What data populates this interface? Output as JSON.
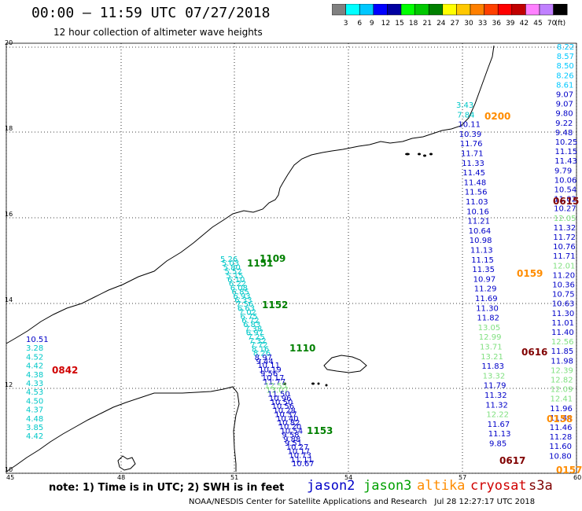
{
  "title": "00:00 – 11:59 UTC 07/27/2018",
  "subtitle": "12 hour collection of altimeter wave heights",
  "colorbar": {
    "ticks": [
      "3",
      "6",
      "9",
      "12",
      "15",
      "18",
      "21",
      "24",
      "27",
      "30",
      "33",
      "36",
      "39",
      "42",
      "45",
      "70"
    ],
    "unit": "(ft)",
    "colors": [
      "#808080",
      "#00ffff",
      "#00c8ff",
      "#0000ff",
      "#0000a0",
      "#00ff00",
      "#00c800",
      "#008000",
      "#ffff00",
      "#ffc800",
      "#ff8000",
      "#ff4000",
      "#ff0000",
      "#c00000",
      "#ff80ff",
      "#c080ff",
      "#000000"
    ]
  },
  "axes": {
    "lat_ticks": [
      "20",
      "18",
      "16",
      "14",
      "12",
      "10"
    ],
    "lon_ticks": [
      "45",
      "48",
      "51",
      "54",
      "57",
      "60"
    ]
  },
  "legend": {
    "note": "note: 1) Time is in UTC; 2) SWH is in feet",
    "sats": [
      {
        "name": "jason2",
        "color": "#0000c8"
      },
      {
        "name": "jason3",
        "color": "#00a000"
      },
      {
        "name": "altika",
        "color": "#ff8c00"
      },
      {
        "name": "cryosat",
        "color": "#d00000"
      },
      {
        "name": "s3a",
        "color": "#800000"
      }
    ]
  },
  "footer": "NOAA/NESDIS Center for Satellite Applications and Research   Jul 28 12:27:17 UTC 2018",
  "times": [
    {
      "label": "0200",
      "color": "#ff8c00"
    },
    {
      "label": "0615",
      "color": "#800000"
    },
    {
      "label": "1151",
      "color": "#008000"
    },
    {
      "label": "1109",
      "color": "#008000"
    },
    {
      "label": "0159",
      "color": "#ff8c00"
    },
    {
      "label": "1152",
      "color": "#008000"
    },
    {
      "label": "1110",
      "color": "#008000"
    },
    {
      "label": "0616",
      "color": "#800000"
    },
    {
      "label": "0842",
      "color": "#d00000"
    },
    {
      "label": "0158",
      "color": "#ff8c00"
    },
    {
      "label": "1153",
      "color": "#008000"
    },
    {
      "label": "0617",
      "color": "#800000"
    },
    {
      "label": "0157",
      "color": "#ff8c00"
    }
  ],
  "obs": {
    "east_track": [
      {
        "v": "8.22",
        "c": "#00c8ff"
      },
      {
        "v": "8.57",
        "c": "#00c8ff"
      },
      {
        "v": "8.50",
        "c": "#00c8ff"
      },
      {
        "v": "8.26",
        "c": "#00c8ff"
      },
      {
        "v": "8.61",
        "c": "#00c8ff"
      },
      {
        "v": "9.07",
        "c": "#0000c8"
      },
      {
        "v": "9.07",
        "c": "#0000c8"
      },
      {
        "v": "9.80",
        "c": "#0000c8"
      },
      {
        "v": "9.22",
        "c": "#0000c8"
      },
      {
        "v": "9.48",
        "c": "#0000c8"
      },
      {
        "v": "10.25",
        "c": "#0000c8"
      },
      {
        "v": "11.15",
        "c": "#0000c8"
      },
      {
        "v": "11.43",
        "c": "#0000c8"
      },
      {
        "v": "9.79",
        "c": "#0000c8"
      },
      {
        "v": "10.06",
        "c": "#0000c8"
      },
      {
        "v": "10.54",
        "c": "#0000c8"
      },
      {
        "v": "11.02",
        "c": "#0000c8"
      },
      {
        "v": "10.27",
        "c": "#0000c8"
      },
      {
        "v": "12.05",
        "c": "#80e080"
      },
      {
        "v": "11.32",
        "c": "#0000c8"
      },
      {
        "v": "11.72",
        "c": "#0000c8"
      },
      {
        "v": "10.76",
        "c": "#0000c8"
      },
      {
        "v": "11.71",
        "c": "#0000c8"
      },
      {
        "v": "12.01",
        "c": "#80e080"
      },
      {
        "v": "11.20",
        "c": "#0000c8"
      },
      {
        "v": "10.36",
        "c": "#0000c8"
      },
      {
        "v": "10.75",
        "c": "#0000c8"
      },
      {
        "v": "10.63",
        "c": "#0000c8"
      },
      {
        "v": "11.30",
        "c": "#0000c8"
      },
      {
        "v": "11.01",
        "c": "#0000c8"
      },
      {
        "v": "11.40",
        "c": "#0000c8"
      },
      {
        "v": "12.56",
        "c": "#80e080"
      },
      {
        "v": "11.85",
        "c": "#0000c8"
      },
      {
        "v": "11.98",
        "c": "#0000c8"
      },
      {
        "v": "12.39",
        "c": "#80e080"
      },
      {
        "v": "12.82",
        "c": "#80e080"
      },
      {
        "v": "12.09",
        "c": "#80e080"
      },
      {
        "v": "12.41",
        "c": "#80e080"
      },
      {
        "v": "11.96",
        "c": "#0000c8"
      },
      {
        "v": "11.44",
        "c": "#0000c8"
      },
      {
        "v": "11.46",
        "c": "#0000c8"
      },
      {
        "v": "11.28",
        "c": "#0000c8"
      },
      {
        "v": "11.60",
        "c": "#0000c8"
      },
      {
        "v": "10.80",
        "c": "#0000c8"
      }
    ],
    "mid_track": [
      {
        "v": "3.43",
        "c": "#00c8c8"
      },
      {
        "v": "7.84",
        "c": "#00c8c8"
      },
      {
        "v": "10.11",
        "c": "#0000c8"
      },
      {
        "v": "10.39",
        "c": "#0000c8"
      },
      {
        "v": "11.76",
        "c": "#0000c8"
      },
      {
        "v": "11.71",
        "c": "#0000c8"
      },
      {
        "v": "11.33",
        "c": "#0000c8"
      },
      {
        "v": "11.45",
        "c": "#0000c8"
      },
      {
        "v": "11.48",
        "c": "#0000c8"
      },
      {
        "v": "11.56",
        "c": "#0000c8"
      },
      {
        "v": "11.03",
        "c": "#0000c8"
      },
      {
        "v": "10.16",
        "c": "#0000c8"
      },
      {
        "v": "11.21",
        "c": "#0000c8"
      },
      {
        "v": "10.64",
        "c": "#0000c8"
      },
      {
        "v": "10.98",
        "c": "#0000c8"
      },
      {
        "v": "11.13",
        "c": "#0000c8"
      },
      {
        "v": "11.15",
        "c": "#0000c8"
      },
      {
        "v": "11.35",
        "c": "#0000c8"
      },
      {
        "v": "10.97",
        "c": "#0000c8"
      },
      {
        "v": "11.29",
        "c": "#0000c8"
      },
      {
        "v": "11.69",
        "c": "#0000c8"
      },
      {
        "v": "11.30",
        "c": "#0000c8"
      },
      {
        "v": "11.82",
        "c": "#0000c8"
      },
      {
        "v": "13.05",
        "c": "#80e080"
      },
      {
        "v": "12.99",
        "c": "#80e080"
      },
      {
        "v": "13.71",
        "c": "#80e080"
      },
      {
        "v": "13.21",
        "c": "#80e080"
      },
      {
        "v": "11.83",
        "c": "#0000c8"
      },
      {
        "v": "13.32",
        "c": "#80e080"
      },
      {
        "v": "11.79",
        "c": "#0000c8"
      },
      {
        "v": "11.32",
        "c": "#0000c8"
      },
      {
        "v": "11.32",
        "c": "#0000c8"
      },
      {
        "v": "12.22",
        "c": "#80e080"
      },
      {
        "v": "11.67",
        "c": "#0000c8"
      },
      {
        "v": "11.13",
        "c": "#0000c8"
      },
      {
        "v": "9.85",
        "c": "#0000c8"
      }
    ],
    "west_track": [
      {
        "v": "5.26",
        "c": "#00c8c8"
      },
      {
        "v": "5.03",
        "c": "#00c8c8"
      },
      {
        "v": "5.80",
        "c": "#00c8c8"
      },
      {
        "v": "5.52",
        "c": "#00c8c8"
      },
      {
        "v": "5.15",
        "c": "#00c8c8"
      },
      {
        "v": "6.10",
        "c": "#00c8c8"
      },
      {
        "v": "6.22",
        "c": "#00c8c8"
      },
      {
        "v": "6.08",
        "c": "#00c8c8"
      },
      {
        "v": "6.85",
        "c": "#00c8c8"
      },
      {
        "v": "6.93",
        "c": "#00c8c8"
      },
      {
        "v": "6.33",
        "c": "#00c8c8"
      },
      {
        "v": "7.56",
        "c": "#00c8c8"
      },
      {
        "v": "6.63",
        "c": "#00c8c8"
      },
      {
        "v": "7.02",
        "c": "#00c8c8"
      },
      {
        "v": "6.75",
        "c": "#00c8c8"
      },
      {
        "v": "6.72",
        "c": "#00c8c8"
      },
      {
        "v": "6.83",
        "c": "#00c8c8"
      },
      {
        "v": "7.38",
        "c": "#00c8c8"
      },
      {
        "v": "6.97",
        "c": "#00c8c8"
      },
      {
        "v": "7.25",
        "c": "#00c8c8"
      },
      {
        "v": "7.32",
        "c": "#00c8c8"
      },
      {
        "v": "7.72",
        "c": "#00c8c8"
      },
      {
        "v": "8.16",
        "c": "#00c8c8"
      },
      {
        "v": "8.26",
        "c": "#00c8c8"
      },
      {
        "v": "8.97",
        "c": "#0000c8"
      },
      {
        "v": "9.44",
        "c": "#0000c8"
      },
      {
        "v": "10.11",
        "c": "#0000c8"
      },
      {
        "v": "10.19",
        "c": "#0000c8"
      },
      {
        "v": "9.56",
        "c": "#0000c8"
      },
      {
        "v": "10.17",
        "c": "#0000c8"
      },
      {
        "v": "11.77",
        "c": "#0000c8"
      },
      {
        "v": "12.55",
        "c": "#80e080"
      },
      {
        "v": "13.07",
        "c": "#80e080"
      },
      {
        "v": "11.50",
        "c": "#0000c8"
      },
      {
        "v": "10.96",
        "c": "#0000c8"
      },
      {
        "v": "10.50",
        "c": "#0000c8"
      },
      {
        "v": "10.56",
        "c": "#0000c8"
      },
      {
        "v": "10.28",
        "c": "#0000c8"
      },
      {
        "v": "10.37",
        "c": "#0000c8"
      },
      {
        "v": "10.40",
        "c": "#0000c8"
      },
      {
        "v": "10.82",
        "c": "#0000c8"
      },
      {
        "v": "10.20",
        "c": "#0000c8"
      },
      {
        "v": "10.54",
        "c": "#0000c8"
      },
      {
        "v": "9.58",
        "c": "#0000c8"
      },
      {
        "v": "9.88",
        "c": "#0000c8"
      },
      {
        "v": "9.51",
        "c": "#0000c8"
      },
      {
        "v": "10.27",
        "c": "#0000c8"
      },
      {
        "v": "10.17",
        "c": "#0000c8"
      },
      {
        "v": "10.73",
        "c": "#0000c8"
      },
      {
        "v": "11.11",
        "c": "#0000c8"
      },
      {
        "v": "10.67",
        "c": "#0000c8"
      }
    ],
    "far_west": [
      {
        "v": "10.51",
        "c": "#0000c8"
      },
      {
        "v": "3.28",
        "c": "#00c8c8"
      },
      {
        "v": "4.52",
        "c": "#00c8c8"
      },
      {
        "v": "4.42",
        "c": "#00c8c8"
      },
      {
        "v": "4.38",
        "c": "#00c8c8"
      },
      {
        "v": "4.33",
        "c": "#00c8c8"
      },
      {
        "v": "4.53",
        "c": "#00c8c8"
      },
      {
        "v": "4.50",
        "c": "#00c8c8"
      },
      {
        "v": "4.37",
        "c": "#00c8c8"
      },
      {
        "v": "4.48",
        "c": "#00c8c8"
      },
      {
        "v": "3.85",
        "c": "#00c8c8"
      },
      {
        "v": "4.42",
        "c": "#00c8c8"
      }
    ]
  }
}
